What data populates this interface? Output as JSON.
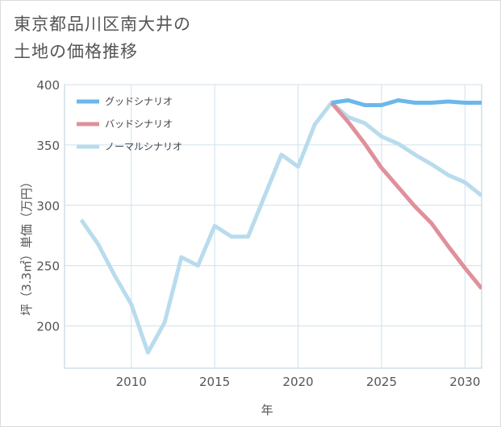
{
  "title": {
    "line1": "東京都品川区南大井の",
    "line2": "土地の価格推移"
  },
  "chart_data": {
    "type": "line",
    "xlabel": "年",
    "ylabel": "坪（3.3㎡）単価（万円）",
    "xlim": [
      2006,
      2031
    ],
    "ylim": [
      165,
      400
    ],
    "xticks": [
      2010,
      2015,
      2020,
      2025,
      2030
    ],
    "yticks": [
      200,
      250,
      300,
      350,
      400
    ],
    "grid": true,
    "legend_position": "top-left",
    "series": [
      {
        "name": "グッドシナリオ",
        "color": "#6ab8ec",
        "x": [
          2022,
          2023,
          2024,
          2025,
          2026,
          2027,
          2028,
          2029,
          2030,
          2031
        ],
        "values": [
          385,
          387,
          383,
          383,
          387,
          385,
          385,
          386,
          385,
          385
        ]
      },
      {
        "name": "バッドシナリオ",
        "color": "#e0909b",
        "x": [
          2022,
          2023,
          2024,
          2025,
          2026,
          2027,
          2028,
          2029,
          2030,
          2031
        ],
        "values": [
          385,
          369,
          351,
          331,
          315,
          299,
          285,
          266,
          248,
          231
        ]
      },
      {
        "name": "ノーマルシナリオ",
        "color": "#b9dced",
        "x": [
          2007,
          2008,
          2009,
          2010,
          2011,
          2012,
          2013,
          2014,
          2015,
          2016,
          2017,
          2018,
          2019,
          2020,
          2021,
          2022,
          2023,
          2024,
          2025,
          2026,
          2027,
          2028,
          2029,
          2030,
          2031
        ],
        "values": [
          288,
          268,
          242,
          218,
          178,
          203,
          257,
          250,
          283,
          274,
          274,
          308,
          342,
          332,
          367,
          385,
          373,
          368,
          357,
          351,
          342,
          334,
          325,
          319,
          308
        ]
      }
    ]
  }
}
